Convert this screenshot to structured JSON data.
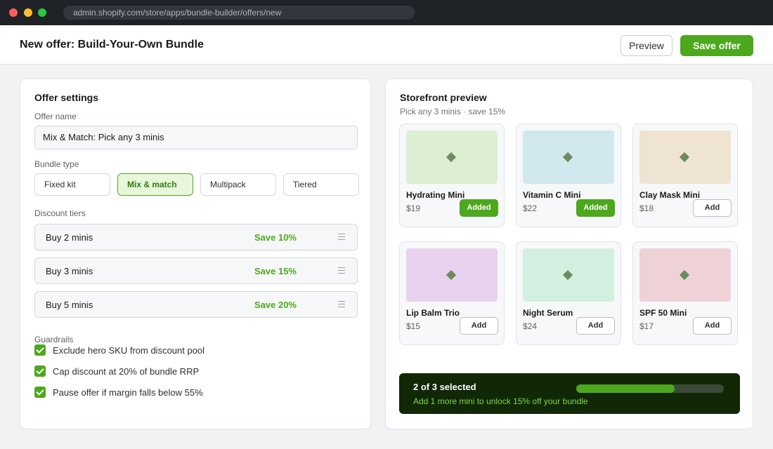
{
  "browser": {
    "url": "admin.shopify.com/store/apps/bundle-builder/offers/new"
  },
  "header": {
    "title": "New offer: Build-Your-Own Bundle",
    "preview_label": "Preview",
    "save_label": "Save offer"
  },
  "settings": {
    "heading": "Offer settings",
    "offer_name_label": "Offer name",
    "offer_name_value": "Mix & Match: Pick any 3 minis",
    "bundle_type_label": "Bundle type",
    "bundle_types": [
      {
        "label": "Fixed kit",
        "selected": false
      },
      {
        "label": "Mix & match",
        "selected": true
      },
      {
        "label": "Multipack",
        "selected": false
      },
      {
        "label": "Tiered",
        "selected": false
      }
    ],
    "tiers_label": "Discount tiers",
    "tiers": [
      {
        "label": "Buy 2 minis",
        "save": "Save 10%"
      },
      {
        "label": "Buy 3 minis",
        "save": "Save 15%"
      },
      {
        "label": "Buy 5 minis",
        "save": "Save 20%"
      }
    ],
    "guardrails_label": "Guardrails",
    "guardrails": [
      {
        "label": "Exclude hero SKU from discount pool",
        "checked": true
      },
      {
        "label": "Cap discount at 20% of bundle RRP",
        "checked": true
      },
      {
        "label": "Pause offer if margin falls below 55%",
        "checked": true
      }
    ]
  },
  "preview": {
    "heading": "Storefront preview",
    "subtitle": "Pick any 3 minis · save 15%",
    "products": [
      {
        "name": "Hydrating Mini",
        "price": "$19",
        "button": "Added",
        "added": true,
        "swatch": "#dcefd2"
      },
      {
        "name": "Vitamin C Mini",
        "price": "$22",
        "button": "Added",
        "added": true,
        "swatch": "#d2e8ef"
      },
      {
        "name": "Clay Mask Mini",
        "price": "$18",
        "button": "Add",
        "added": false,
        "swatch": "#efe3d2"
      },
      {
        "name": "Lip Balm Trio",
        "price": "$15",
        "button": "Add",
        "added": false,
        "swatch": "#e8d2ef"
      },
      {
        "name": "Night Serum",
        "price": "$24",
        "button": "Add",
        "added": false,
        "swatch": "#d2efdf"
      },
      {
        "name": "SPF 50 Mini",
        "price": "$17",
        "button": "Add",
        "added": false,
        "swatch": "#efd2d8"
      }
    ],
    "progress": {
      "title": "2 of 3 selected",
      "hint": "Add 1 more mini to unlock 15% off your bundle",
      "fraction": 0.667
    }
  },
  "colors": {
    "accent": "#4ea81e",
    "progress_bg": "#112807",
    "hint_text": "#7bd84a"
  }
}
